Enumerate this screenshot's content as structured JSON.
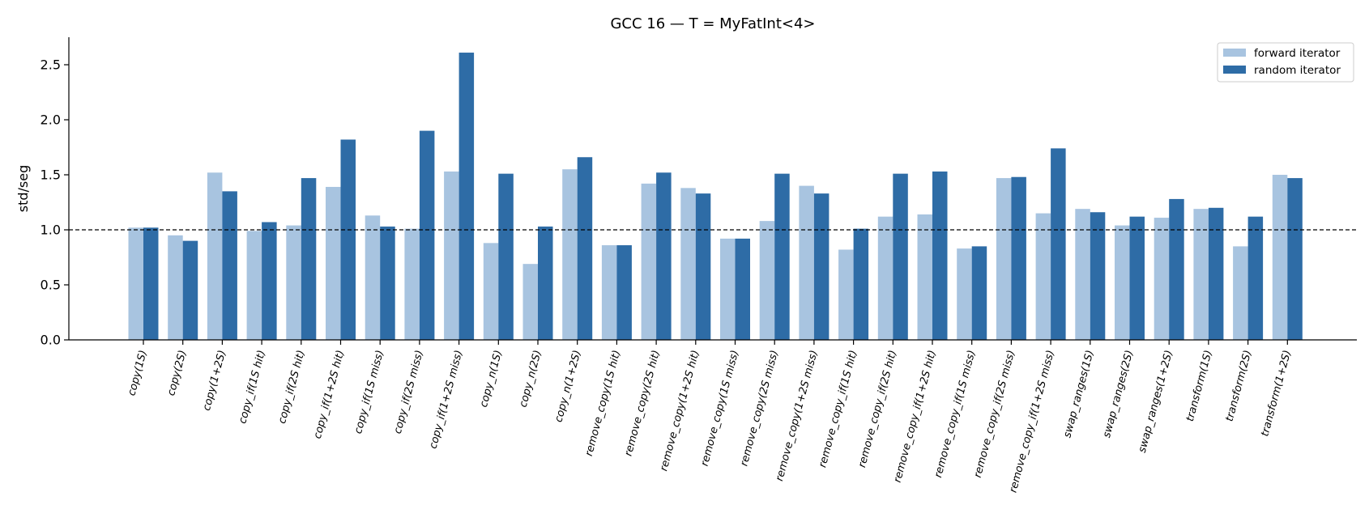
{
  "chart_data": {
    "type": "bar",
    "title": "GCC 16 — T = MyFatInt<4>",
    "xlabel": "",
    "ylabel": "std/seg",
    "ylim": [
      0,
      2.75
    ],
    "yticks": [
      0.0,
      0.5,
      1.0,
      1.5,
      2.0,
      2.5
    ],
    "ytick_labels": [
      "0.0",
      "0.5",
      "1.0",
      "1.5",
      "2.0",
      "2.5"
    ],
    "reference_line": 1.0,
    "grid": false,
    "legend_position": "top-right",
    "categories": [
      "copy(1S)",
      "copy(2S)",
      "copy(1+2S)",
      "copy_if(1S hit)",
      "copy_if(2S hit)",
      "copy_if(1+2S hit)",
      "copy_if(1S miss)",
      "copy_if(2S miss)",
      "copy_if(1+2S miss)",
      "copy_n(1S)",
      "copy_n(2S)",
      "copy_n(1+2S)",
      "remove_copy(1S hit)",
      "remove_copy(2S hit)",
      "remove_copy(1+2S hit)",
      "remove_copy(1S miss)",
      "remove_copy(2S miss)",
      "remove_copy(1+2S miss)",
      "remove_copy_if(1S hit)",
      "remove_copy_if(2S hit)",
      "remove_copy_if(1+2S hit)",
      "remove_copy_if(1S miss)",
      "remove_copy_if(2S miss)",
      "remove_copy_if(1+2S miss)",
      "swap_ranges(1S)",
      "swap_ranges(2S)",
      "swap_ranges(1+2S)",
      "transform(1S)",
      "transform(2S)",
      "transform(1+2S)"
    ],
    "series": [
      {
        "name": "forward iterator",
        "color": "#a8c4e0",
        "values": [
          1.02,
          0.95,
          1.52,
          0.99,
          1.04,
          1.39,
          1.13,
          1.01,
          1.53,
          0.88,
          0.69,
          1.55,
          0.86,
          1.42,
          1.38,
          0.92,
          1.08,
          1.4,
          0.82,
          1.12,
          1.14,
          0.83,
          1.47,
          1.15,
          1.19,
          1.04,
          1.11,
          1.19,
          0.85,
          1.5
        ]
      },
      {
        "name": "random iterator",
        "color": "#2e6ca6",
        "values": [
          1.02,
          0.9,
          1.35,
          1.07,
          1.47,
          1.82,
          1.03,
          1.9,
          2.61,
          1.51,
          1.03,
          1.66,
          0.86,
          1.52,
          1.33,
          0.92,
          1.51,
          1.33,
          1.01,
          1.51,
          1.53,
          0.85,
          1.48,
          1.74,
          1.16,
          1.12,
          1.28,
          1.2,
          1.12,
          1.47
        ]
      }
    ]
  }
}
